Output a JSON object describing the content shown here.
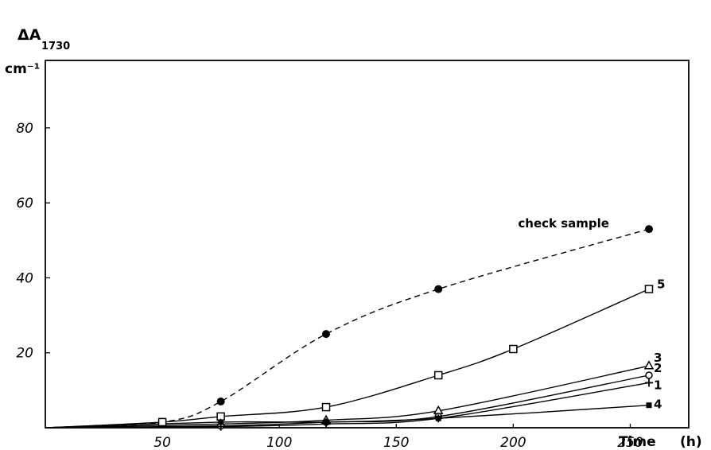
{
  "chart_data": {
    "type": "line",
    "ylabel_main": "ΔA",
    "ylabel_sub": "1730",
    "yunit": "cm⁻¹",
    "xlabel": "Time",
    "xunit": "(h)",
    "xlim": [
      0,
      275
    ],
    "ylim": [
      0,
      98
    ],
    "xticks": [
      50,
      100,
      150,
      200,
      250
    ],
    "yticks": [
      20,
      40,
      60,
      80
    ],
    "grid": false,
    "series": [
      {
        "name": "check sample",
        "style": "dashed",
        "marker": "filled-circle",
        "points": [
          [
            0,
            0
          ],
          [
            50,
            1.5
          ],
          [
            75,
            7
          ],
          [
            120,
            25
          ],
          [
            168,
            37
          ],
          [
            258,
            53
          ]
        ]
      },
      {
        "name": "5",
        "style": "solid",
        "marker": "open-square",
        "points": [
          [
            0,
            0
          ],
          [
            50,
            1.5
          ],
          [
            75,
            3
          ],
          [
            120,
            5.5
          ],
          [
            168,
            14
          ],
          [
            200,
            21
          ],
          [
            258,
            37
          ]
        ]
      },
      {
        "name": "3",
        "style": "solid",
        "marker": "open-triangle",
        "points": [
          [
            0,
            0
          ],
          [
            75,
            1
          ],
          [
            120,
            2
          ],
          [
            168,
            4.5
          ],
          [
            258,
            16.5
          ]
        ]
      },
      {
        "name": "2",
        "style": "solid",
        "marker": "open-circle",
        "points": [
          [
            0,
            0
          ],
          [
            75,
            0.5
          ],
          [
            120,
            1.5
          ],
          [
            168,
            3
          ],
          [
            258,
            14
          ]
        ]
      },
      {
        "name": "1",
        "style": "solid",
        "marker": "plus",
        "points": [
          [
            0,
            0
          ],
          [
            75,
            0.3
          ],
          [
            120,
            1
          ],
          [
            168,
            2.5
          ],
          [
            258,
            12
          ]
        ]
      },
      {
        "name": "4",
        "style": "solid",
        "marker": "filled-square",
        "points": [
          [
            0,
            0
          ],
          [
            75,
            1.5
          ],
          [
            120,
            1.5
          ],
          [
            168,
            2.5
          ],
          [
            258,
            6
          ]
        ]
      }
    ]
  }
}
